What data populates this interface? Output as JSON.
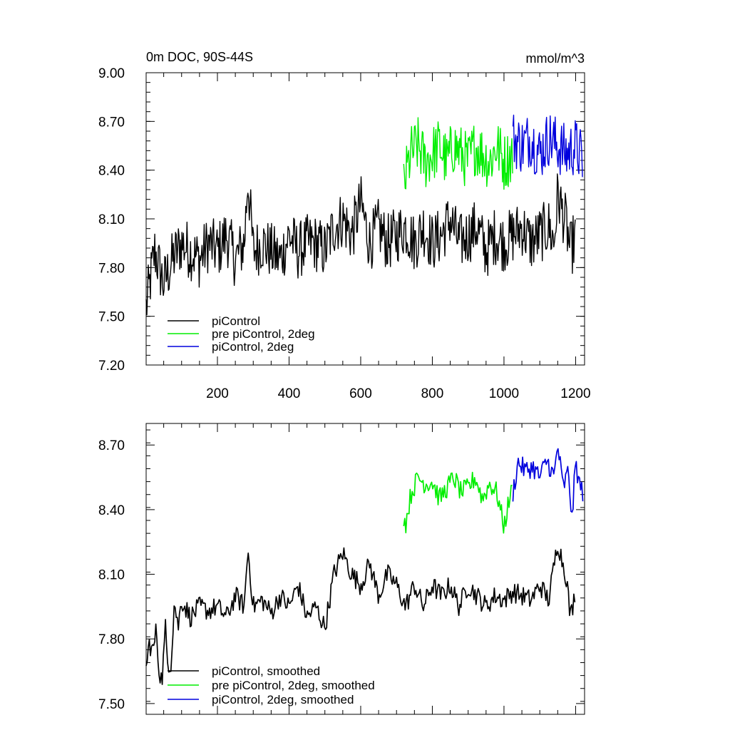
{
  "chart_data": [
    {
      "type": "line",
      "title": "0m DOC, 90S-44S",
      "units_label": "mmol/m^3",
      "xlabel": "",
      "ylabel": "",
      "xlim": [
        1,
        1225
      ],
      "ylim": [
        7.2,
        9.0
      ],
      "x_ticks": [
        200,
        400,
        600,
        800,
        1000,
        1200
      ],
      "y_ticks": [
        7.2,
        7.5,
        7.8,
        8.1,
        8.4,
        8.7,
        9.0
      ],
      "y_tick_labels": [
        "7.20",
        "7.50",
        "7.80",
        "8.10",
        "8.40",
        "8.70",
        "9.00"
      ],
      "legend_position": "bottom-left",
      "series": [
        {
          "name": "piControl",
          "color": "#000000",
          "x": [
            1,
            25,
            50,
            75,
            100,
            125,
            150,
            175,
            200,
            225,
            250,
            275,
            285,
            300,
            325,
            350,
            375,
            400,
            425,
            450,
            475,
            500,
            525,
            550,
            575,
            600,
            625,
            650,
            675,
            700,
            725,
            750,
            775,
            800,
            825,
            850,
            875,
            900,
            925,
            950,
            975,
            1000,
            1025,
            1050,
            1075,
            1100,
            1125,
            1140,
            1150,
            1175,
            1185,
            1200
          ],
          "values": [
            7.55,
            7.9,
            7.7,
            7.85,
            7.95,
            7.9,
            7.85,
            7.95,
            7.9,
            8.0,
            7.85,
            7.95,
            8.35,
            7.9,
            7.95,
            7.9,
            7.85,
            8.0,
            7.9,
            7.95,
            7.95,
            7.9,
            8.05,
            8.1,
            8.0,
            8.2,
            7.95,
            8.05,
            7.95,
            8.0,
            8.05,
            7.95,
            8.05,
            7.95,
            8.0,
            8.1,
            7.95,
            8.0,
            8.05,
            7.9,
            8.0,
            7.95,
            8.0,
            8.05,
            7.95,
            8.0,
            8.05,
            7.95,
            8.25,
            8.05,
            7.9,
            8.0
          ]
        },
        {
          "name": "pre piControl, 2deg",
          "color": "#00ee00",
          "x": [
            720,
            740,
            760,
            780,
            800,
            820,
            840,
            860,
            880,
            900,
            920,
            940,
            960,
            980,
            1000,
            1025
          ],
          "values": [
            8.3,
            8.5,
            8.55,
            8.45,
            8.5,
            8.55,
            8.45,
            8.55,
            8.5,
            8.45,
            8.55,
            8.5,
            8.45,
            8.55,
            8.45,
            8.5
          ]
        },
        {
          "name": "piControl, 2deg",
          "color": "#0000dd",
          "x": [
            1025,
            1050,
            1075,
            1100,
            1125,
            1150,
            1175,
            1200,
            1220
          ],
          "values": [
            8.6,
            8.55,
            8.6,
            8.5,
            8.6,
            8.55,
            8.5,
            8.55,
            8.45
          ]
        }
      ]
    },
    {
      "type": "line",
      "title": "",
      "xlabel": "",
      "ylabel": "",
      "xlim": [
        1,
        1225
      ],
      "ylim": [
        7.45,
        8.8
      ],
      "x_ticks": [
        200,
        400,
        600,
        800,
        1000,
        1200
      ],
      "y_ticks": [
        7.5,
        7.8,
        8.1,
        8.4,
        8.7
      ],
      "y_tick_labels": [
        "7.50",
        "7.80",
        "8.10",
        "8.40",
        "8.70"
      ],
      "legend_position": "bottom-left",
      "series": [
        {
          "name": "piControl, smoothed",
          "color": "#000000",
          "x": [
            1,
            10,
            20,
            30,
            35,
            45,
            55,
            60,
            70,
            80,
            90,
            100,
            125,
            150,
            175,
            200,
            225,
            250,
            275,
            285,
            300,
            325,
            350,
            375,
            400,
            425,
            450,
            475,
            500,
            525,
            550,
            575,
            600,
            625,
            650,
            675,
            700,
            725,
            750,
            775,
            800,
            825,
            850,
            875,
            900,
            925,
            950,
            975,
            1000,
            1025,
            1050,
            1075,
            1100,
            1125,
            1150,
            1175,
            1185,
            1200
          ],
          "values": [
            7.66,
            7.78,
            7.74,
            7.85,
            7.68,
            7.6,
            7.85,
            7.7,
            7.68,
            7.98,
            7.85,
            7.98,
            7.9,
            7.95,
            7.93,
            7.95,
            7.9,
            8.0,
            7.95,
            8.22,
            7.95,
            7.98,
            7.92,
            8.0,
            7.95,
            8.05,
            7.9,
            7.95,
            7.85,
            8.1,
            8.2,
            8.1,
            8.05,
            8.15,
            8.0,
            8.1,
            8.05,
            7.95,
            8.05,
            7.95,
            8.05,
            8.0,
            8.05,
            7.95,
            8.05,
            8.0,
            7.95,
            8.0,
            7.98,
            8.02,
            8.0,
            7.98,
            8.05,
            7.98,
            8.25,
            8.08,
            7.9,
            8.02
          ]
        },
        {
          "name": "pre piControl, 2deg, smoothed",
          "color": "#00ee00",
          "x": [
            720,
            725,
            740,
            760,
            780,
            800,
            820,
            840,
            860,
            880,
            900,
            920,
            940,
            960,
            980,
            1000,
            1015,
            1025
          ],
          "values": [
            8.37,
            8.33,
            8.47,
            8.55,
            8.52,
            8.53,
            8.45,
            8.5,
            8.55,
            8.48,
            8.5,
            8.55,
            8.45,
            8.52,
            8.48,
            8.32,
            8.45,
            8.5
          ]
        },
        {
          "name": "piControl, 2deg, smoothed",
          "color": "#0000dd",
          "x": [
            1025,
            1040,
            1060,
            1080,
            1100,
            1120,
            1140,
            1150,
            1165,
            1180,
            1190,
            1200,
            1210,
            1220
          ],
          "values": [
            8.48,
            8.62,
            8.58,
            8.6,
            8.55,
            8.63,
            8.55,
            8.7,
            8.5,
            8.58,
            8.35,
            8.62,
            8.52,
            8.48
          ]
        }
      ]
    }
  ]
}
